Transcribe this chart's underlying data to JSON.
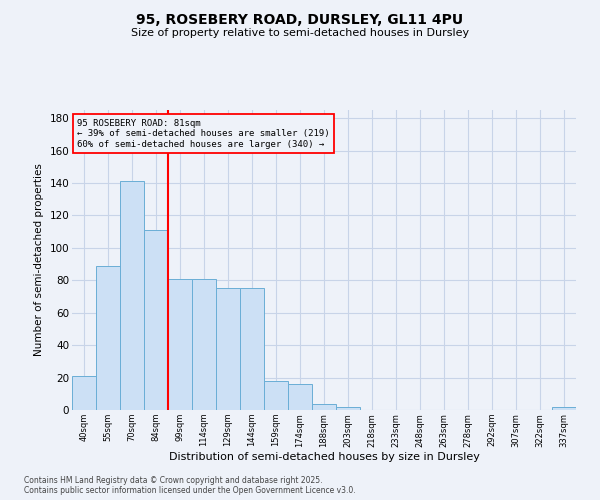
{
  "title1": "95, ROSEBERY ROAD, DURSLEY, GL11 4PU",
  "title2": "Size of property relative to semi-detached houses in Dursley",
  "xlabel": "Distribution of semi-detached houses by size in Dursley",
  "ylabel": "Number of semi-detached properties",
  "bins": [
    "40sqm",
    "55sqm",
    "70sqm",
    "84sqm",
    "99sqm",
    "114sqm",
    "129sqm",
    "144sqm",
    "159sqm",
    "174sqm",
    "188sqm",
    "203sqm",
    "218sqm",
    "233sqm",
    "248sqm",
    "263sqm",
    "278sqm",
    "292sqm",
    "307sqm",
    "322sqm",
    "337sqm"
  ],
  "values": [
    21,
    89,
    141,
    111,
    81,
    81,
    75,
    75,
    18,
    16,
    4,
    2,
    0,
    0,
    0,
    0,
    0,
    0,
    0,
    0,
    2
  ],
  "bar_color": "#cce0f5",
  "bar_edge_color": "#6aaed6",
  "vline_color": "red",
  "annotation_title": "95 ROSEBERY ROAD: 81sqm",
  "annotation_line1": "← 39% of semi-detached houses are smaller (219)",
  "annotation_line2": "60% of semi-detached houses are larger (340) →",
  "annotation_box_color": "red",
  "footer1": "Contains HM Land Registry data © Crown copyright and database right 2025.",
  "footer2": "Contains public sector information licensed under the Open Government Licence v3.0.",
  "bg_color": "#eef2f9",
  "grid_color": "#c8d4e8",
  "ylim": [
    0,
    185
  ],
  "yticks": [
    0,
    20,
    40,
    60,
    80,
    100,
    120,
    140,
    160,
    180
  ]
}
